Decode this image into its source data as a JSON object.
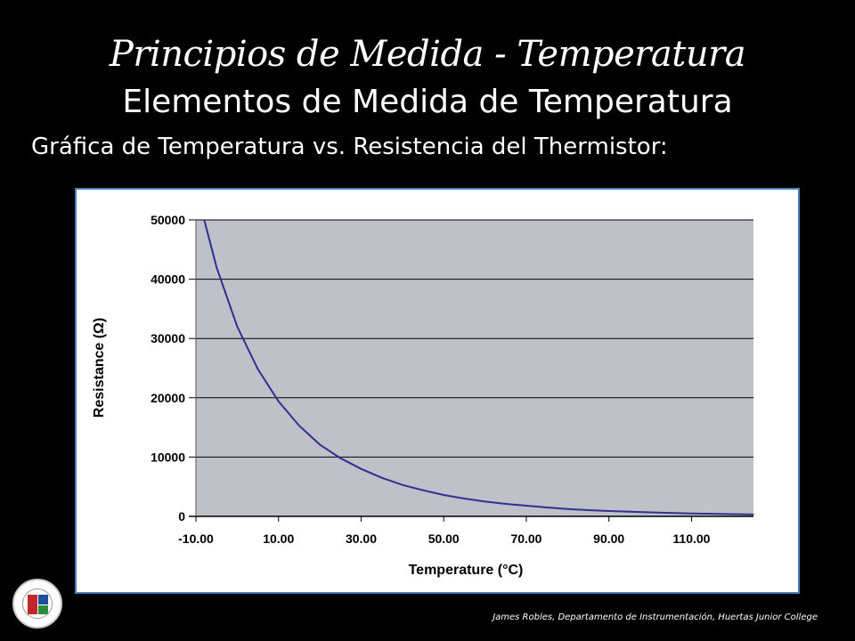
{
  "header": {
    "script_title": "Principios de Medida  - Temperatura",
    "main_title": "Elementos de Medida de Temperatura",
    "subtitle": "Gráfica de Temperatura vs. Resistencia del Thermistor:"
  },
  "footer": {
    "text": "James Robles, Departamento de Instrumentación,  Huertas Junior College"
  },
  "colors": {
    "background": "#000000",
    "plot_area": "#c0c0c8",
    "curve": "#2e3192",
    "frame": "#4a7ebb"
  },
  "chart_data": {
    "type": "line",
    "title": "",
    "xlabel": "Temperature (°C)",
    "ylabel": "Resistance (Ω)",
    "xlim": [
      -10,
      125
    ],
    "ylim": [
      0,
      50000
    ],
    "x_ticks": [
      "-10.00",
      "10.00",
      "30.00",
      "50.00",
      "70.00",
      "90.00",
      "110.00"
    ],
    "y_ticks": [
      "0",
      "10000",
      "20000",
      "30000",
      "40000",
      "50000"
    ],
    "grid": "horizontal",
    "legend": "none",
    "series": [
      {
        "x": [
          -8,
          -5,
          0,
          5,
          10,
          15,
          20,
          25,
          30,
          35,
          40,
          45,
          50,
          55,
          60,
          65,
          70,
          75,
          80,
          85,
          90,
          95,
          100,
          105,
          110,
          115,
          120,
          125
        ],
        "y": [
          50000,
          42000,
          32000,
          24800,
          19400,
          15300,
          12100,
          9800,
          8000,
          6500,
          5300,
          4400,
          3600,
          3000,
          2500,
          2100,
          1800,
          1500,
          1250,
          1050,
          900,
          780,
          670,
          580,
          500,
          430,
          370,
          320
        ]
      }
    ]
  }
}
